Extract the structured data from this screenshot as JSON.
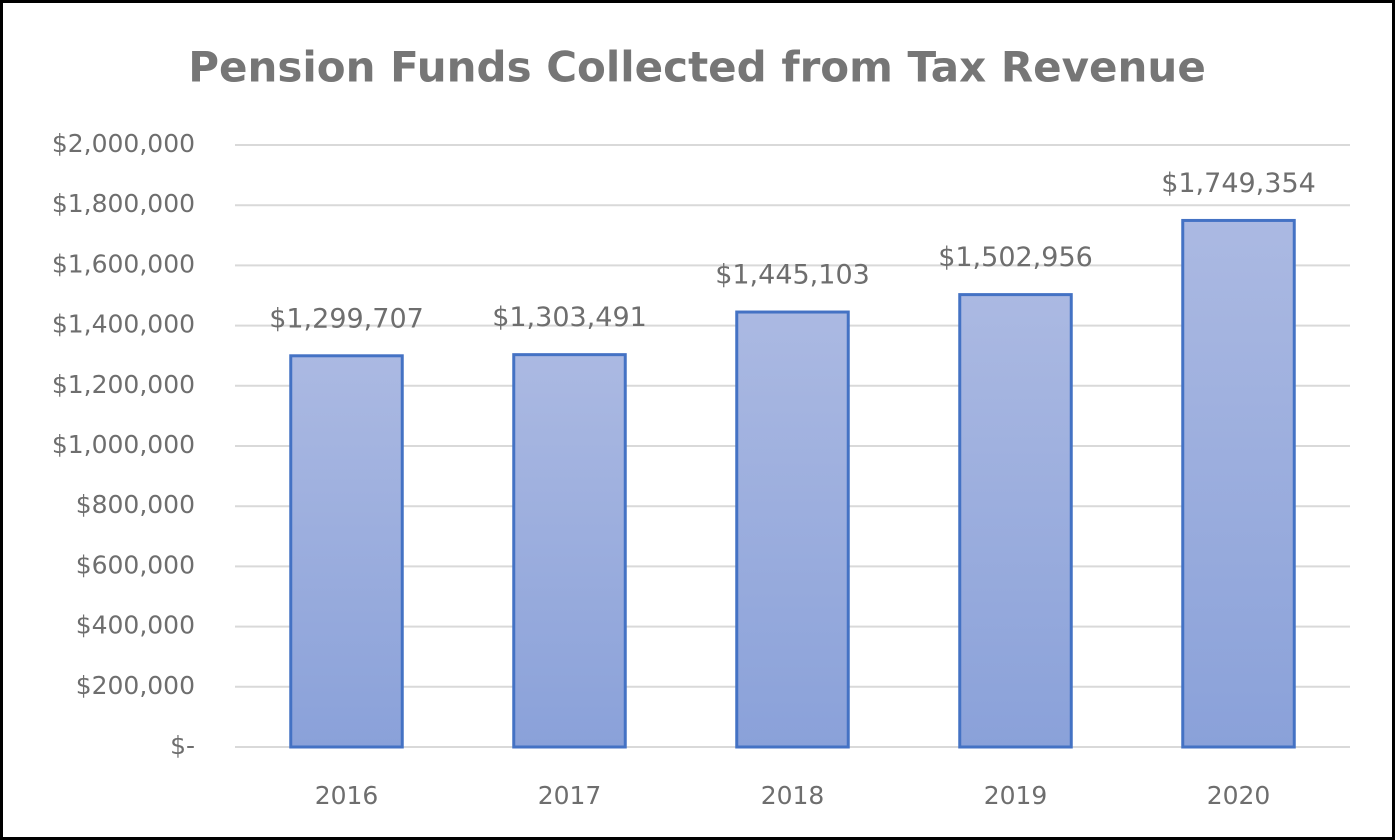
{
  "chart_data": {
    "type": "bar",
    "title": "Pension Funds Collected from Tax Revenue",
    "categories": [
      "2016",
      "2017",
      "2018",
      "2019",
      "2020"
    ],
    "values": [
      1299707,
      1303491,
      1445103,
      1502956,
      1749354
    ],
    "value_labels": [
      "$1,299,707",
      "$1,303,491",
      "$1,445,103",
      "$1,502,956",
      "$1,749,354"
    ],
    "color": "#4472c4",
    "ylim": [
      0,
      2000000
    ],
    "yticks": [
      {
        "value": 0,
        "label": "$-"
      },
      {
        "value": 200000,
        "label": "$200,000"
      },
      {
        "value": 400000,
        "label": "$400,000"
      },
      {
        "value": 600000,
        "label": "$600,000"
      },
      {
        "value": 800000,
        "label": "$800,000"
      },
      {
        "value": 1000000,
        "label": "$1,000,000"
      },
      {
        "value": 1200000,
        "label": "$1,200,000"
      },
      {
        "value": 1400000,
        "label": "$1,400,000"
      },
      {
        "value": 1600000,
        "label": "$1,600,000"
      },
      {
        "value": 1800000,
        "label": "$1,800,000"
      },
      {
        "value": 2000000,
        "label": "$2,000,000"
      }
    ],
    "grid": true
  }
}
